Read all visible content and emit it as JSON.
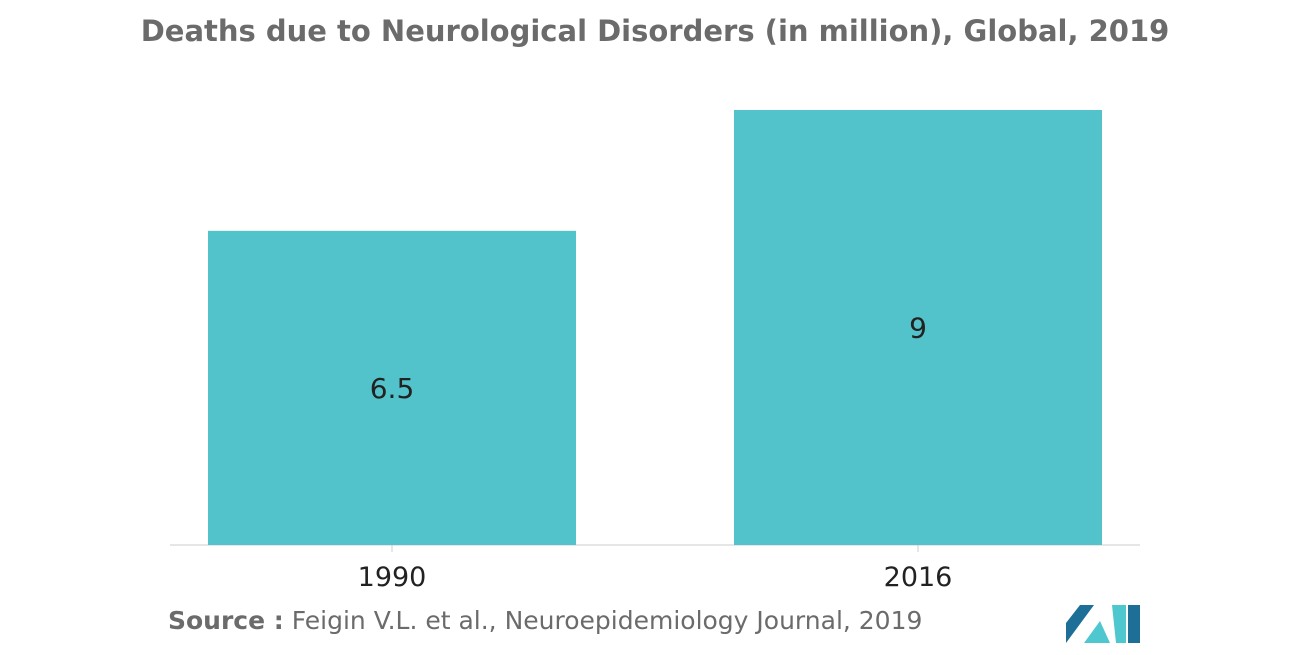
{
  "title": "Deaths due to Neurological Disorders (in million), Global, 2019",
  "source": {
    "prefix": "Source :",
    "text": "Feigin V.L. et al., Neuroepidemiology Journal, 2019"
  },
  "colors": {
    "bar": "#52c3ca",
    "text": "#6b6b6b",
    "label": "#222222",
    "axis": "#cccccc",
    "logo_dark": "#1d6f97",
    "logo_light": "#4fc7cf"
  },
  "icons": {
    "logo": "mordor-intelligence-logo"
  },
  "chart_data": {
    "type": "bar",
    "title": "Deaths due to Neurological Disorders (in million), Global, 2019",
    "categories": [
      "1990",
      "2016"
    ],
    "values": [
      6.5,
      9
    ],
    "value_labels": [
      "6.5",
      "9"
    ],
    "xlabel": "",
    "ylabel": "",
    "ylim": [
      0,
      9
    ],
    "grid": false,
    "legend": "none"
  }
}
